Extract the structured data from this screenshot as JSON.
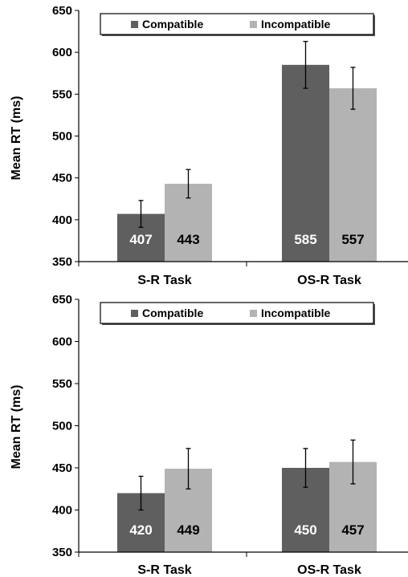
{
  "chart_data": [
    {
      "type": "bar",
      "title": "",
      "xlabel": "",
      "ylabel": "Mean RT (ms)",
      "ylim": [
        350,
        650
      ],
      "yticks": [
        350,
        400,
        450,
        500,
        550,
        600,
        650
      ],
      "categories": [
        "S-R Task",
        "OS-R Task"
      ],
      "legend_position": "top",
      "grid": false,
      "series": [
        {
          "name": "Compatible",
          "color": "#5f5f5f",
          "label_color": "#ffffff",
          "values": [
            407,
            585
          ],
          "error": [
            16,
            28
          ]
        },
        {
          "name": "Incompatible",
          "color": "#b3b3b3",
          "label_color": "#000000",
          "values": [
            443,
            557
          ],
          "error": [
            17,
            25
          ]
        }
      ]
    },
    {
      "type": "bar",
      "title": "",
      "xlabel": "",
      "ylabel": "Mean RT (ms)",
      "ylim": [
        350,
        650
      ],
      "yticks": [
        350,
        400,
        450,
        500,
        550,
        600,
        650
      ],
      "categories": [
        "S-R Task",
        "OS-R Task"
      ],
      "legend_position": "top",
      "grid": false,
      "series": [
        {
          "name": "Compatible",
          "color": "#5f5f5f",
          "label_color": "#ffffff",
          "values": [
            420,
            450
          ],
          "error": [
            20,
            23
          ]
        },
        {
          "name": "Incompatible",
          "color": "#b3b3b3",
          "label_color": "#000000",
          "values": [
            449,
            457
          ],
          "error": [
            24,
            26
          ]
        }
      ]
    }
  ]
}
